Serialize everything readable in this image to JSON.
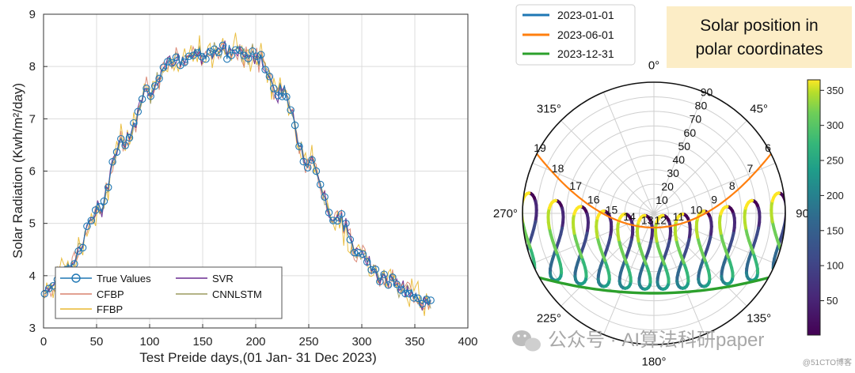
{
  "chart_data": [
    {
      "type": "line",
      "xlabel": "Test Preide days,(01 Jan- 31 Dec 2023)",
      "ylabel": "Solar Radiation (Kwh/m²/day)",
      "xlim": [
        0,
        400
      ],
      "ylim": [
        3,
        9
      ],
      "xticks": [
        0,
        50,
        100,
        150,
        200,
        250,
        300,
        350,
        400
      ],
      "yticks": [
        3,
        4,
        5,
        6,
        7,
        8,
        9
      ],
      "grid": true,
      "legend_position": "bottom-left",
      "series": [
        {
          "name": "True Values",
          "color": "#1f77b4",
          "marker": "circle"
        },
        {
          "name": "SVR",
          "color": "#6a2c91"
        },
        {
          "name": "CFBP",
          "color": "#d9826e"
        },
        {
          "name": "CNNLSTM",
          "color": "#9c9a5e"
        },
        {
          "name": "FFBP",
          "color": "#e8b830"
        }
      ],
      "x": [
        0,
        25,
        50,
        75,
        100,
        125,
        150,
        172,
        200,
        225,
        250,
        275,
        300,
        325,
        350,
        365
      ],
      "y_true_approx": [
        3.7,
        4.2,
        5.2,
        6.6,
        7.6,
        8.1,
        8.3,
        8.3,
        8.2,
        7.5,
        6.2,
        5.1,
        4.4,
        3.9,
        3.6,
        3.6
      ]
    },
    {
      "type": "polar",
      "title": "Solar position in polar coordinates",
      "radial_ticks": [
        10,
        20,
        30,
        40,
        50,
        60,
        70,
        80,
        90
      ],
      "angle_ticks": [
        "0°",
        "45°",
        "90",
        "135°",
        "180°",
        "225°",
        "270°",
        "315°"
      ],
      "hour_labels": [
        "6",
        "7",
        "8",
        "9",
        "10",
        "11",
        "12",
        "13",
        "14",
        "15",
        "16",
        "17",
        "18",
        "19"
      ],
      "legend_position": "top-left",
      "series": [
        {
          "name": "2023-01-01",
          "color": "#1f77b4"
        },
        {
          "name": "2023-06-01",
          "color": "#ff7f0e"
        },
        {
          "name": "2023-12-31",
          "color": "#2ca02c"
        }
      ],
      "colorbar": {
        "ticks": [
          50,
          100,
          150,
          200,
          250,
          300,
          350
        ],
        "range": [
          1,
          365
        ],
        "colormap": "viridis"
      }
    }
  ],
  "watermark": {
    "main": "公众号 · AI算法科研paper",
    "corner": "@51CTO博客"
  }
}
